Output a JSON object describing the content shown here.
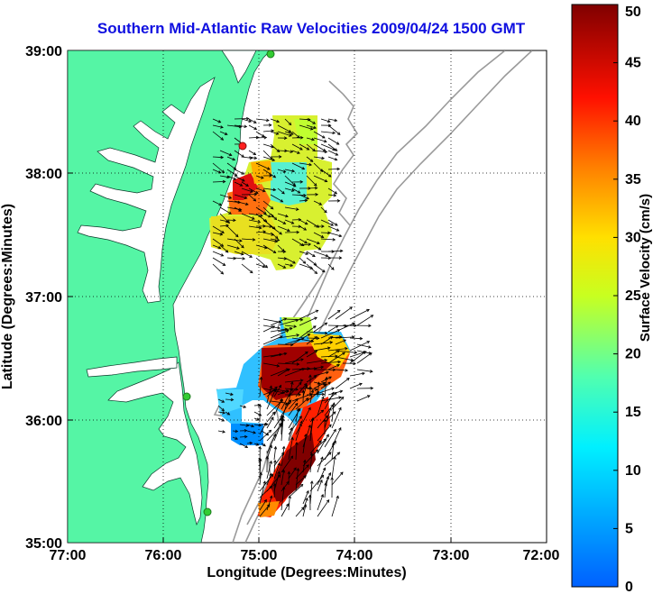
{
  "title": "Southern Mid-Atlantic Raw Velocities 2009/04/24 1500 GMT",
  "axes": {
    "xlabel": "Longitude (Degrees:Minutes)",
    "ylabel": "Latitude (Degrees:Minutes)",
    "x_ticks": [
      "77:00",
      "76:00",
      "75:00",
      "74:00",
      "73:00",
      "72:00"
    ],
    "y_ticks": [
      "39:00",
      "38:00",
      "37:00",
      "36:00",
      "35:00"
    ],
    "xlim": [
      -77,
      -72
    ],
    "ylim": [
      35,
      39
    ]
  },
  "colorbar": {
    "label": "Surface Velocity (cm/s)",
    "ticks": [
      "50",
      "45",
      "40",
      "35",
      "30",
      "25",
      "20",
      "15",
      "10",
      "5",
      "0"
    ],
    "range": [
      0,
      50
    ]
  },
  "colors": {
    "land": "#55f5a5",
    "ocean": "#ffffff",
    "title": "#1010e0",
    "bathymetry": "#999999",
    "station": "#33cc33"
  }
}
